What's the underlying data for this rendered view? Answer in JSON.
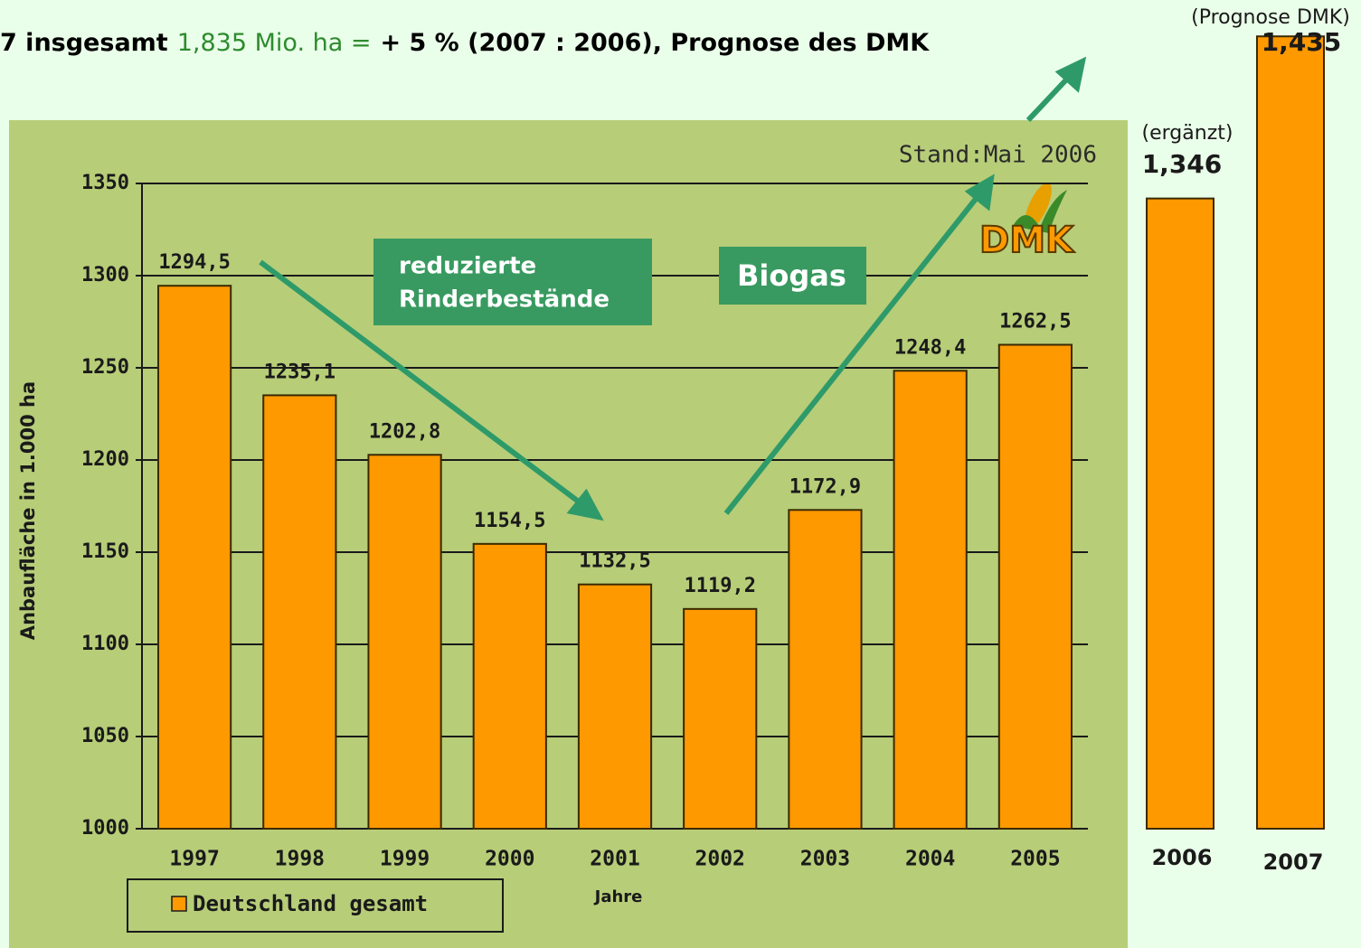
{
  "headline": [
    {
      "text": "7 insgesamt",
      "color": "#000000",
      "bold": true
    },
    {
      "text": "1,835 Mio. ha =",
      "color": "#2e8b2e",
      "bold": false
    },
    {
      "text": "+ 5 % (2007 : 2006), Prognose des DMK",
      "color": "#000000",
      "bold": true
    }
  ],
  "chart_data": [
    {
      "type": "bar",
      "annotation": "Stand:Mai 2006",
      "logo": "DMK",
      "callouts": [
        [
          "reduzierte",
          "Rinderbestände"
        ],
        [
          "Biogas"
        ]
      ],
      "ylabel": "Anbaufläche in 1.000 ha",
      "xlabel": "Jahre",
      "categories": [
        "1997",
        "1998",
        "1999",
        "2000",
        "2001",
        "2002",
        "2003",
        "2004",
        "2005"
      ],
      "series": [
        {
          "name": "Deutschland gesamt",
          "color": "#ff9900",
          "values": [
            1294.5,
            1235.1,
            1202.8,
            1154.5,
            1132.5,
            1119.2,
            1172.9,
            1248.4,
            1262.5
          ],
          "value_labels": [
            "1294,5",
            "1235,1",
            "1202,8",
            "1154,5",
            "1132,5",
            "1119,2",
            "1172,9",
            "1248,4",
            "1262,5"
          ]
        }
      ],
      "ylim": [
        1000,
        1350
      ],
      "yticks": [
        1000,
        1050,
        1100,
        1150,
        1200,
        1250,
        1300,
        1350
      ],
      "grid": true,
      "legend": "bottom-left"
    },
    {
      "type": "bar",
      "categories": [
        "2006",
        "2007"
      ],
      "values": [
        1.346,
        1.435
      ],
      "value_labels": [
        "1,346",
        "1,435"
      ],
      "annotations": [
        "(ergänzt)",
        "(Prognose DMK)"
      ],
      "color": "#ff9900",
      "ylim": [
        1.0,
        1.45
      ]
    }
  ]
}
